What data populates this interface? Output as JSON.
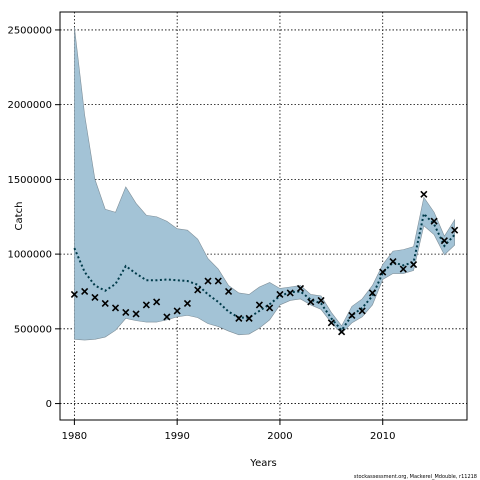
{
  "chart_data": {
    "type": "line",
    "xlabel": "Years",
    "ylabel": "Catch",
    "xlim": [
      1978.6,
      2018.2
    ],
    "ylim": [
      -110000,
      2620000
    ],
    "xticks": [
      1980,
      1990,
      2000,
      2010
    ],
    "yticks": [
      0,
      500000,
      1000000,
      1500000,
      2000000,
      2500000
    ],
    "ytick_labels": [
      "0",
      "500000",
      "1000000",
      "1500000",
      "2000000",
      "2500000"
    ],
    "grid": true,
    "band_color": "#a3c3d6",
    "band_edge_color": "#7f8f99",
    "line_color": "#003b4a",
    "marker_color": "#000000",
    "credit": "stockassessment.org, Mackerel_Mdouble, r11218",
    "series": [
      {
        "kind": "band",
        "x": [
          1980,
          1981,
          1982,
          1983,
          1984,
          1985,
          1986,
          1987,
          1988,
          1989,
          1990,
          1991,
          1992,
          1993,
          1994,
          1995,
          1996,
          1997,
          1998,
          1999,
          2000,
          2001,
          2002,
          2003,
          2004,
          2005,
          2006,
          2007,
          2008,
          2009,
          2010,
          2011,
          2012,
          2013,
          2014,
          2015,
          2016,
          2017
        ],
        "upper": [
          2520000,
          1930000,
          1500000,
          1300000,
          1280000,
          1450000,
          1340000,
          1260000,
          1250000,
          1220000,
          1170000,
          1160000,
          1100000,
          970000,
          900000,
          790000,
          740000,
          730000,
          780000,
          810000,
          770000,
          780000,
          790000,
          730000,
          720000,
          610000,
          520000,
          650000,
          700000,
          790000,
          930000,
          1020000,
          1030000,
          1050000,
          1380000,
          1280000,
          1120000,
          1230000
        ],
        "lower": [
          430000,
          425000,
          430000,
          445000,
          490000,
          570000,
          555000,
          545000,
          545000,
          560000,
          580000,
          590000,
          575000,
          535000,
          515000,
          485000,
          460000,
          465000,
          505000,
          560000,
          660000,
          690000,
          700000,
          660000,
          630000,
          540000,
          470000,
          540000,
          580000,
          660000,
          830000,
          870000,
          870000,
          890000,
          1190000,
          1130000,
          995000,
          1060000
        ]
      },
      {
        "kind": "estimate",
        "x": [
          1980,
          1981,
          1982,
          1983,
          1984,
          1985,
          1986,
          1987,
          1988,
          1989,
          1990,
          1991,
          1992,
          1993,
          1994,
          1995,
          1996,
          1997,
          1998,
          1999,
          2000,
          2001,
          2002,
          2003,
          2004,
          2005,
          2006,
          2007,
          2008,
          2009,
          2010,
          2011,
          2012,
          2013,
          2014,
          2015,
          2016,
          2017
        ],
        "y": [
          1040000,
          880000,
          790000,
          755000,
          800000,
          920000,
          870000,
          825000,
          825000,
          830000,
          825000,
          820000,
          795000,
          730000,
          680000,
          615000,
          575000,
          575000,
          620000,
          665000,
          720000,
          745000,
          750000,
          695000,
          670000,
          570000,
          490000,
          590000,
          640000,
          720000,
          875000,
          945000,
          925000,
          945000,
          1270000,
          1200000,
          1055000,
          1130000
        ]
      },
      {
        "kind": "observed",
        "x": [
          1980,
          1981,
          1982,
          1983,
          1984,
          1985,
          1986,
          1987,
          1988,
          1989,
          1990,
          1991,
          1992,
          1993,
          1994,
          1995,
          1996,
          1997,
          1998,
          1999,
          2000,
          2001,
          2002,
          2003,
          2004,
          2005,
          2006,
          2007,
          2008,
          2009,
          2010,
          2011,
          2012,
          2013,
          2014,
          2015,
          2016,
          2017
        ],
        "y": [
          730000,
          750000,
          710000,
          670000,
          640000,
          610000,
          600000,
          660000,
          680000,
          580000,
          620000,
          670000,
          760000,
          820000,
          820000,
          750000,
          570000,
          570000,
          660000,
          640000,
          730000,
          740000,
          770000,
          680000,
          690000,
          540000,
          480000,
          590000,
          620000,
          740000,
          880000,
          950000,
          900000,
          930000,
          1400000,
          1220000,
          1090000,
          1160000
        ]
      }
    ]
  }
}
